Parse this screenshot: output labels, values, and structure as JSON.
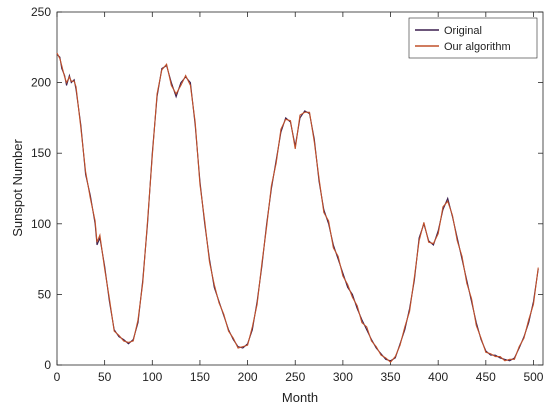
{
  "chart_data": {
    "type": "line",
    "xlabel": "Month",
    "ylabel": "Sunspot Number",
    "x": [
      0,
      3,
      5,
      8,
      10,
      13,
      15,
      18,
      20,
      25,
      30,
      35,
      40,
      42,
      45,
      50,
      55,
      60,
      65,
      70,
      75,
      80,
      85,
      90,
      95,
      100,
      105,
      110,
      115,
      120,
      125,
      130,
      135,
      140,
      145,
      150,
      155,
      160,
      165,
      170,
      175,
      180,
      185,
      190,
      195,
      200,
      205,
      210,
      215,
      220,
      225,
      230,
      235,
      240,
      245,
      250,
      255,
      260,
      265,
      270,
      275,
      280,
      285,
      290,
      295,
      300,
      305,
      310,
      315,
      320,
      325,
      330,
      335,
      340,
      345,
      350,
      355,
      360,
      365,
      370,
      375,
      380,
      385,
      390,
      395,
      400,
      405,
      410,
      415,
      420,
      425,
      430,
      435,
      440,
      445,
      450,
      455,
      460,
      465,
      470,
      475,
      480,
      485,
      490,
      495,
      500,
      505
    ],
    "series": [
      {
        "name": "Original",
        "color": "#3b1f4f",
        "values": [
          220,
          218,
          210,
          205,
          198,
          205,
          200,
          202,
          195,
          170,
          135,
          120,
          100,
          85,
          90,
          70,
          45,
          25,
          20,
          18,
          15,
          18,
          30,
          60,
          100,
          150,
          190,
          210,
          212,
          200,
          190,
          200,
          204,
          200,
          170,
          130,
          100,
          75,
          55,
          45,
          35,
          25,
          18,
          13,
          12,
          15,
          25,
          45,
          70,
          100,
          125,
          145,
          165,
          175,
          172,
          155,
          175,
          180,
          178,
          160,
          130,
          110,
          100,
          85,
          75,
          65,
          55,
          50,
          40,
          32,
          25,
          18,
          12,
          8,
          4,
          3,
          5,
          15,
          25,
          40,
          60,
          90,
          100,
          88,
          85,
          95,
          110,
          118,
          105,
          90,
          75,
          60,
          45,
          30,
          18,
          10,
          7,
          7,
          5,
          4,
          3,
          5,
          12,
          20,
          30,
          45,
          68
        ]
      },
      {
        "name": "Our algorithm",
        "color": "#c0502a",
        "values": [
          221,
          217,
          212,
          204,
          200,
          204,
          201,
          201,
          197,
          168,
          137,
          118,
          102,
          87,
          92,
          68,
          47,
          24,
          21,
          17,
          16,
          17,
          32,
          58,
          102,
          148,
          192,
          209,
          213,
          198,
          192,
          198,
          205,
          198,
          172,
          128,
          102,
          73,
          57,
          44,
          36,
          24,
          19,
          12,
          13,
          14,
          27,
          43,
          72,
          98,
          127,
          143,
          167,
          174,
          173,
          153,
          177,
          179,
          179,
          158,
          132,
          108,
          102,
          83,
          77,
          63,
          57,
          48,
          42,
          30,
          27,
          17,
          13,
          7,
          5,
          2,
          6,
          14,
          27,
          38,
          62,
          88,
          101,
          87,
          86,
          93,
          112,
          116,
          106,
          88,
          77,
          58,
          47,
          28,
          19,
          9,
          8,
          6,
          6,
          3,
          4,
          4,
          13,
          19,
          32,
          43,
          69
        ]
      }
    ],
    "xlim": [
      0,
      510
    ],
    "xticks": [
      0,
      50,
      100,
      150,
      200,
      250,
      300,
      350,
      400,
      450,
      500
    ],
    "ylim": [
      0,
      250
    ],
    "yticks": [
      0,
      50,
      100,
      150,
      200,
      250
    ],
    "legend": "upper right"
  }
}
